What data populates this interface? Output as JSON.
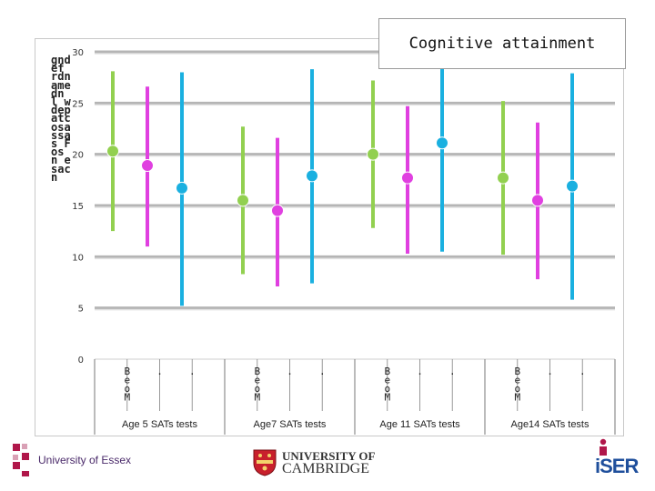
{
  "chart_data": {
    "type": "error-bar",
    "title": "Cognitive attainment",
    "ylabel": "gndef rdnamedn l wdepatcosassas Fos n esac n",
    "ylim": [
      0,
      30
    ],
    "yticks": [
      0,
      5,
      10,
      15,
      20,
      25,
      30
    ],
    "grid": true,
    "groups": [
      {
        "label": "Age 5 SATs tests",
        "subcats": [
          "B\ne\no\nM",
          ".",
          "."
        ],
        "points": [
          {
            "color": "#92d050",
            "value": 20.3,
            "low": 12.5,
            "high": 28.1
          },
          {
            "color": "#e040e0",
            "value": 18.9,
            "low": 11.0,
            "high": 26.6
          },
          {
            "color": "#1ab0e0",
            "value": 16.7,
            "low": 5.2,
            "high": 28.0
          }
        ]
      },
      {
        "label": "Age7 SATs tests",
        "subcats": [
          "B\ne\no\nM",
          ".",
          "."
        ],
        "points": [
          {
            "color": "#92d050",
            "value": 15.5,
            "low": 8.3,
            "high": 22.7
          },
          {
            "color": "#e040e0",
            "value": 14.5,
            "low": 7.1,
            "high": 21.6
          },
          {
            "color": "#1ab0e0",
            "value": 17.9,
            "low": 7.4,
            "high": 28.3
          }
        ]
      },
      {
        "label": "Age 11 SATs tests",
        "subcats": [
          "B\ne\no\nM",
          ".",
          "."
        ],
        "points": [
          {
            "color": "#92d050",
            "value": 20.0,
            "low": 12.8,
            "high": 27.2
          },
          {
            "color": "#e040e0",
            "value": 17.7,
            "low": 10.3,
            "high": 24.7
          },
          {
            "color": "#1ab0e0",
            "value": 21.1,
            "low": 10.5,
            "high": 29.0
          }
        ]
      },
      {
        "label": "Age14 SATs tests",
        "subcats": [
          "B\ne\no\nM",
          ".",
          "."
        ],
        "points": [
          {
            "color": "#92d050",
            "value": 17.7,
            "low": 10.2,
            "high": 25.2
          },
          {
            "color": "#e040e0",
            "value": 15.5,
            "low": 7.8,
            "high": 23.1
          },
          {
            "color": "#1ab0e0",
            "value": 16.9,
            "low": 5.8,
            "high": 27.9
          }
        ]
      }
    ]
  },
  "logos": {
    "essex": "University of Essex",
    "cambridge_line1": "UNIVERSITY OF",
    "cambridge_line2": "CAMBRIDGE",
    "iser": "iSER"
  }
}
